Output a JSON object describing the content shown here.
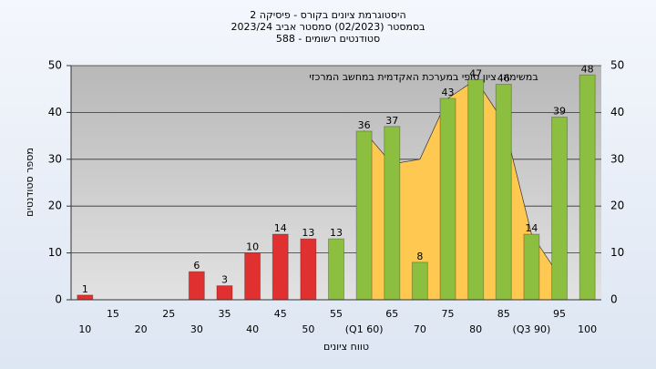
{
  "chart_data": {
    "type": "bar",
    "title_lines": [
      "היסטוגרמת ציונים בקורס - פיסיקה 2",
      "בסמסטר  (02/2023)  סמסטר אביב 2023/24",
      "סטודנטים רשומים - 588"
    ],
    "annotation": "במשימה: ציון סופי במערכת האקדמית במחשב המרכזי",
    "y_label": "מספר סטודנטים",
    "x_label": "טווח ציונים",
    "categories": [
      "10",
      "15",
      "20",
      "25",
      "30",
      "35",
      "40",
      "45",
      "50",
      "55",
      "(Q1 60)",
      "65",
      "70",
      "75",
      "80",
      "85",
      "(Q3 90)",
      "95",
      "100"
    ],
    "values": [
      1,
      0,
      0,
      0,
      6,
      3,
      10,
      14,
      13,
      13,
      36,
      37,
      8,
      43,
      47,
      46,
      14,
      39,
      48
    ],
    "colors": [
      "#e03030",
      "#e03030",
      "#e03030",
      "#e03030",
      "#e03030",
      "#e03030",
      "#e03030",
      "#e03030",
      "#e03030",
      "#8cbf3f",
      "#8cbf3f",
      "#8cbf3f",
      "#8cbf3f",
      "#8cbf3f",
      "#8cbf3f",
      "#8cbf3f",
      "#8cbf3f",
      "#8cbf3f",
      "#8cbf3f"
    ],
    "area": {
      "color": "#ffc850",
      "values": [
        null,
        null,
        null,
        null,
        null,
        null,
        null,
        null,
        null,
        null,
        36,
        29,
        30,
        43,
        47,
        38,
        14,
        5,
        null
      ]
    },
    "ylim": [
      0,
      50
    ],
    "yticks": [
      0,
      10,
      20,
      30,
      40,
      50
    ],
    "mirror_y_axis": true,
    "grid": true
  }
}
